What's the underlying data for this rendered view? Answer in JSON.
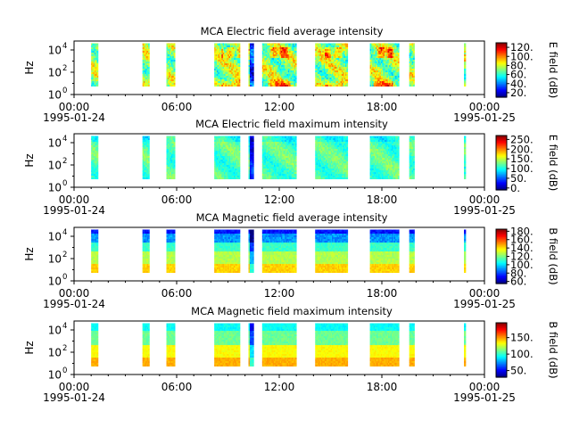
{
  "chart_data": [
    {
      "type": "heatmap",
      "title": "MCA  Electric field average intensity",
      "ylabel": "Hz",
      "colorbar_label": "E field (dB)",
      "x_ticks": [
        "00:00",
        "06:00",
        "12:00",
        "18:00",
        "00:00"
      ],
      "x_tick_hours": [
        0,
        6,
        12,
        18,
        24
      ],
      "date_left": "1995-01-24",
      "date_right": "1995-01-25",
      "y_ticks": [
        "10",
        "10",
        "10"
      ],
      "y_tick_exponents": [
        "0",
        "2",
        "4"
      ],
      "ylim_log10": [
        0,
        4.8
      ],
      "colorbar_ticks": [
        "20.",
        "40.",
        "60.",
        "80.",
        "100.",
        "120."
      ],
      "colorbar_values": [
        20,
        40,
        60,
        80,
        100,
        120
      ],
      "clim": [
        10,
        130
      ],
      "profile": "e_avg"
    },
    {
      "type": "heatmap",
      "title": "MCA  Electric field maximum intensity",
      "ylabel": "Hz",
      "colorbar_label": "E field (dB)",
      "x_ticks": [
        "00:00",
        "06:00",
        "12:00",
        "18:00",
        "00:00"
      ],
      "x_tick_hours": [
        0,
        6,
        12,
        18,
        24
      ],
      "date_left": "1995-01-24",
      "date_right": "1995-01-25",
      "y_ticks": [
        "10",
        "10",
        "10"
      ],
      "y_tick_exponents": [
        "0",
        "2",
        "4"
      ],
      "ylim_log10": [
        0,
        4.8
      ],
      "colorbar_ticks": [
        "0.",
        "50.",
        "100.",
        "150.",
        "200.",
        "250."
      ],
      "colorbar_values": [
        0,
        50,
        100,
        150,
        200,
        250
      ],
      "clim": [
        -10,
        270
      ],
      "profile": "e_max"
    },
    {
      "type": "heatmap",
      "title": "MCA  Magnetic field average intensity",
      "ylabel": "Hz",
      "colorbar_label": "B field (dB)",
      "x_ticks": [
        "00:00",
        "06:00",
        "12:00",
        "18:00",
        "00:00"
      ],
      "x_tick_hours": [
        0,
        6,
        12,
        18,
        24
      ],
      "date_left": "1995-01-24",
      "date_right": "1995-01-25",
      "y_ticks": [
        "10",
        "10",
        "10"
      ],
      "y_tick_exponents": [
        "0",
        "2",
        "4"
      ],
      "ylim_log10": [
        0,
        4.8
      ],
      "colorbar_ticks": [
        "60.",
        "80.",
        "100.",
        "120.",
        "140.",
        "160.",
        "180."
      ],
      "colorbar_values": [
        60,
        80,
        100,
        120,
        140,
        160,
        180
      ],
      "clim": [
        55,
        185
      ],
      "profile": "b_avg"
    },
    {
      "type": "heatmap",
      "title": "MCA  Magnetic field maximum intensity",
      "ylabel": "Hz",
      "colorbar_label": "B field (dB)",
      "x_ticks": [
        "00:00",
        "06:00",
        "12:00",
        "18:00",
        "00:00"
      ],
      "x_tick_hours": [
        0,
        6,
        12,
        18,
        24
      ],
      "date_left": "1995-01-24",
      "date_right": "1995-01-25",
      "y_ticks": [
        "10",
        "10",
        "10"
      ],
      "y_tick_exponents": [
        "0",
        "2",
        "4"
      ],
      "ylim_log10": [
        0,
        4.8
      ],
      "colorbar_ticks": [
        "50.",
        "100.",
        "150."
      ],
      "colorbar_values": [
        50,
        100,
        150
      ],
      "clim": [
        30,
        195
      ],
      "profile": "b_max"
    }
  ],
  "data_segments_hours": [
    [
      1.0,
      1.4
    ],
    [
      4.0,
      4.4
    ],
    [
      5.4,
      5.9
    ],
    [
      8.2,
      9.7
    ],
    [
      10.2,
      10.5
    ],
    [
      11.0,
      13.0
    ],
    [
      14.1,
      16.0
    ],
    [
      17.3,
      19.0
    ],
    [
      19.6,
      19.9
    ],
    [
      22.8,
      22.9
    ]
  ],
  "colors": {
    "background": "#ffffff",
    "axes": "#000000"
  }
}
